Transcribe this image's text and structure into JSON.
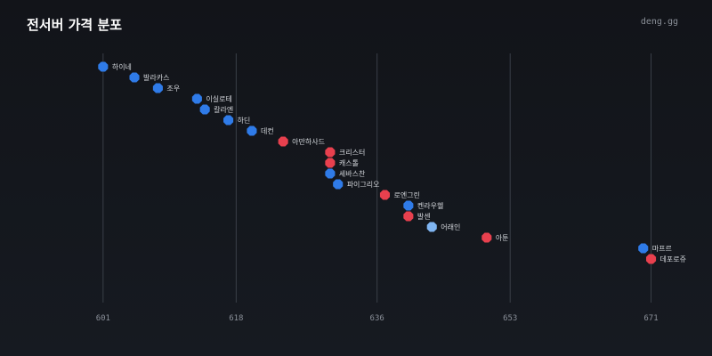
{
  "header": {
    "title": "전서버 가격 분포",
    "brand": "deng.gg"
  },
  "colors": {
    "blue": "#2f7be8",
    "red": "#e8404e",
    "light_blue": "#7fb5f2",
    "grid": "#3a3f48",
    "tick_text": "#8a8f98",
    "label_text": "#d4d7dc"
  },
  "chart_data": {
    "type": "scatter",
    "title": "전서버 가격 분포",
    "xlabel": "",
    "ylabel": "",
    "xlim": [
      599.2,
      673.1
    ],
    "xticks": [
      601,
      618,
      636,
      653,
      671
    ],
    "grid": true,
    "points": [
      {
        "label": "하이네",
        "x": 601,
        "color": "blue"
      },
      {
        "label": "발라카스",
        "x": 605,
        "color": "blue"
      },
      {
        "label": "조우",
        "x": 608,
        "color": "blue"
      },
      {
        "label": "이실로테",
        "x": 613,
        "color": "blue"
      },
      {
        "label": "칼라엔",
        "x": 614,
        "color": "blue"
      },
      {
        "label": "하딘",
        "x": 617,
        "color": "blue"
      },
      {
        "label": "데컨",
        "x": 620,
        "color": "blue"
      },
      {
        "label": "아만하사드",
        "x": 624,
        "color": "red"
      },
      {
        "label": "크리스터",
        "x": 630,
        "color": "red"
      },
      {
        "label": "캐스톨",
        "x": 630,
        "color": "red"
      },
      {
        "label": "세바스찬",
        "x": 630,
        "color": "blue"
      },
      {
        "label": "파이그리오",
        "x": 631,
        "color": "blue"
      },
      {
        "label": "로엔그린",
        "x": 637,
        "color": "red"
      },
      {
        "label": "켄라우헬",
        "x": 640,
        "color": "blue"
      },
      {
        "label": "발센",
        "x": 640,
        "color": "red"
      },
      {
        "label": "어래인",
        "x": 643,
        "color": "light_blue"
      },
      {
        "label": "아툰",
        "x": 650,
        "color": "red"
      },
      {
        "label": "마프르",
        "x": 670,
        "color": "blue"
      },
      {
        "label": "데포로쥬",
        "x": 671,
        "color": "red"
      }
    ]
  }
}
